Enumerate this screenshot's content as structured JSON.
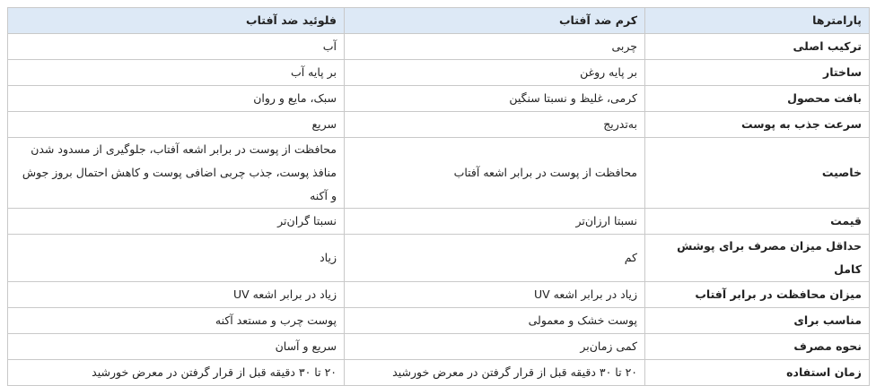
{
  "table": {
    "header": [
      "پارامترها",
      "کرم ضد آفتاب",
      "فلوئید ضد آفتاب"
    ],
    "rows": [
      [
        "ترکیب اصلی",
        "چربی",
        "آب"
      ],
      [
        "ساختار",
        "بر پایه روغن",
        "بر پایه آب"
      ],
      [
        "بافت محصول",
        "کرمی، غلیظ و نسبتا سنگین",
        "سبک، مایع و روان"
      ],
      [
        "سرعت جذب به پوست",
        "به‌تدریج",
        "سریع"
      ],
      [
        "خاصیت",
        "محافظت از پوست در برابر اشعه آفتاب",
        "محافظت از پوست در برابر اشعه آفتاب، جلوگیری از مسدود شدن منافذ پوست، جذب چربی اضافی پوست و کاهش احتمال بروز جوش و آکنه"
      ],
      [
        "قیمت",
        "نسبتا ارزان‌تر",
        "نسبتا گران‌تر"
      ],
      [
        "حداقل میزان مصرف برای پوشش کامل",
        "کم",
        "زیاد"
      ],
      [
        "میزان محافظت در برابر آفتاب",
        "زیاد در برابر اشعه UV",
        "زیاد در برابر اشعه UV"
      ],
      [
        "مناسب برای",
        "پوست خشک و معمولی",
        "پوست چرب و مستعد آکنه"
      ],
      [
        "نحوه مصرف",
        "کمی زمان‌بر",
        "سریع و آسان"
      ],
      [
        "زمان استفاده",
        "۲۰ تا ۳۰ دقیقه قبل از قرار گرفتن در معرض خورشید",
        "۲۰ تا ۳۰ دقیقه قبل از قرار گرفتن در معرض خورشید"
      ]
    ]
  }
}
